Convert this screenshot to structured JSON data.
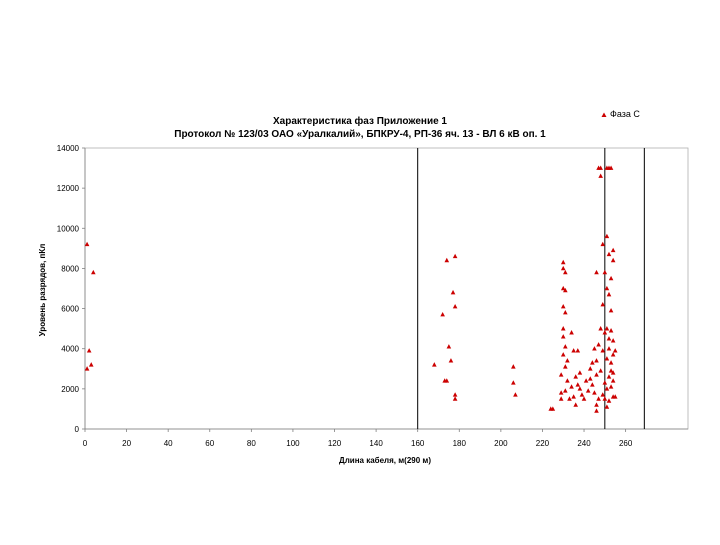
{
  "chart_data": {
    "type": "scatter",
    "title_line1": "Характеристика фаз   Приложение 1",
    "title_line2": "Протокол № 123/03    ОАО «Уралкалий», БПКРУ-4, РП-36 яч. 13  - ВЛ 6 кВ оп. 1",
    "xlabel": "Длина кабеля, м(290 м)",
    "ylabel": "Уровень разрядов, пКл",
    "xlim": [
      0,
      290
    ],
    "ylim": [
      0,
      14000
    ],
    "x_ticks": [
      0,
      20,
      40,
      60,
      80,
      100,
      120,
      140,
      160,
      180,
      200,
      220,
      240,
      260
    ],
    "y_ticks": [
      0,
      2000,
      4000,
      6000,
      8000,
      10000,
      12000,
      14000
    ],
    "grid": false,
    "legend_position": "top-right",
    "color": "#cc0000",
    "vertical_lines": [
      160,
      250,
      269
    ],
    "series": [
      {
        "name": "Фаза С",
        "points": [
          [
            1,
            9200
          ],
          [
            2,
            3900
          ],
          [
            1,
            3000
          ],
          [
            3,
            3200
          ],
          [
            4,
            7800
          ],
          [
            168,
            3200
          ],
          [
            172,
            5700
          ],
          [
            173,
            2400
          ],
          [
            174,
            2400
          ],
          [
            174,
            8400
          ],
          [
            175,
            4100
          ],
          [
            176,
            3400
          ],
          [
            177,
            6800
          ],
          [
            178,
            6100
          ],
          [
            178,
            8600
          ],
          [
            178,
            1700
          ],
          [
            178,
            1500
          ],
          [
            206,
            3100
          ],
          [
            206,
            2300
          ],
          [
            207,
            1700
          ],
          [
            224,
            1000
          ],
          [
            225,
            1000
          ],
          [
            229,
            1500
          ],
          [
            229,
            1800
          ],
          [
            229,
            2700
          ],
          [
            230,
            3700
          ],
          [
            230,
            4600
          ],
          [
            230,
            5000
          ],
          [
            230,
            6100
          ],
          [
            230,
            7000
          ],
          [
            230,
            8300
          ],
          [
            230,
            8000
          ],
          [
            231,
            1900
          ],
          [
            231,
            3100
          ],
          [
            231,
            4100
          ],
          [
            231,
            5800
          ],
          [
            231,
            6900
          ],
          [
            231,
            7800
          ],
          [
            232,
            2400
          ],
          [
            232,
            3400
          ],
          [
            233,
            1500
          ],
          [
            234,
            2100
          ],
          [
            234,
            4800
          ],
          [
            235,
            1600
          ],
          [
            235,
            3900
          ],
          [
            236,
            1200
          ],
          [
            236,
            2600
          ],
          [
            237,
            3900
          ],
          [
            237,
            2200
          ],
          [
            238,
            2000
          ],
          [
            238,
            2800
          ],
          [
            239,
            1700
          ],
          [
            240,
            1500
          ],
          [
            241,
            2400
          ],
          [
            242,
            1900
          ],
          [
            243,
            3000
          ],
          [
            243,
            2500
          ],
          [
            244,
            2200
          ],
          [
            244,
            3300
          ],
          [
            245,
            1800
          ],
          [
            245,
            4000
          ],
          [
            246,
            1200
          ],
          [
            246,
            900
          ],
          [
            246,
            2700
          ],
          [
            246,
            3400
          ],
          [
            246,
            7800
          ],
          [
            247,
            1500
          ],
          [
            247,
            13000
          ],
          [
            247,
            4200
          ],
          [
            248,
            12600
          ],
          [
            248,
            13000
          ],
          [
            248,
            5000
          ],
          [
            248,
            2900
          ],
          [
            249,
            6200
          ],
          [
            249,
            3900
          ],
          [
            249,
            1700
          ],
          [
            249,
            9200
          ],
          [
            250,
            4800
          ],
          [
            250,
            7800
          ],
          [
            250,
            2300
          ],
          [
            250,
            1500
          ],
          [
            251,
            9600
          ],
          [
            251,
            5000
          ],
          [
            251,
            3500
          ],
          [
            251,
            13000
          ],
          [
            251,
            1100
          ],
          [
            251,
            7000
          ],
          [
            251,
            2000
          ],
          [
            252,
            6700
          ],
          [
            252,
            8700
          ],
          [
            252,
            4500
          ],
          [
            252,
            4000
          ],
          [
            252,
            2600
          ],
          [
            252,
            1400
          ],
          [
            252,
            13000
          ],
          [
            253,
            7500
          ],
          [
            253,
            5900
          ],
          [
            253,
            4900
          ],
          [
            253,
            3300
          ],
          [
            253,
            2900
          ],
          [
            253,
            2100
          ],
          [
            253,
            13000
          ],
          [
            254,
            8900
          ],
          [
            254,
            8400
          ],
          [
            254,
            4400
          ],
          [
            254,
            3700
          ],
          [
            254,
            2800
          ],
          [
            254,
            2400
          ],
          [
            254,
            1600
          ],
          [
            255,
            3900
          ],
          [
            255,
            1600
          ]
        ]
      }
    ]
  }
}
